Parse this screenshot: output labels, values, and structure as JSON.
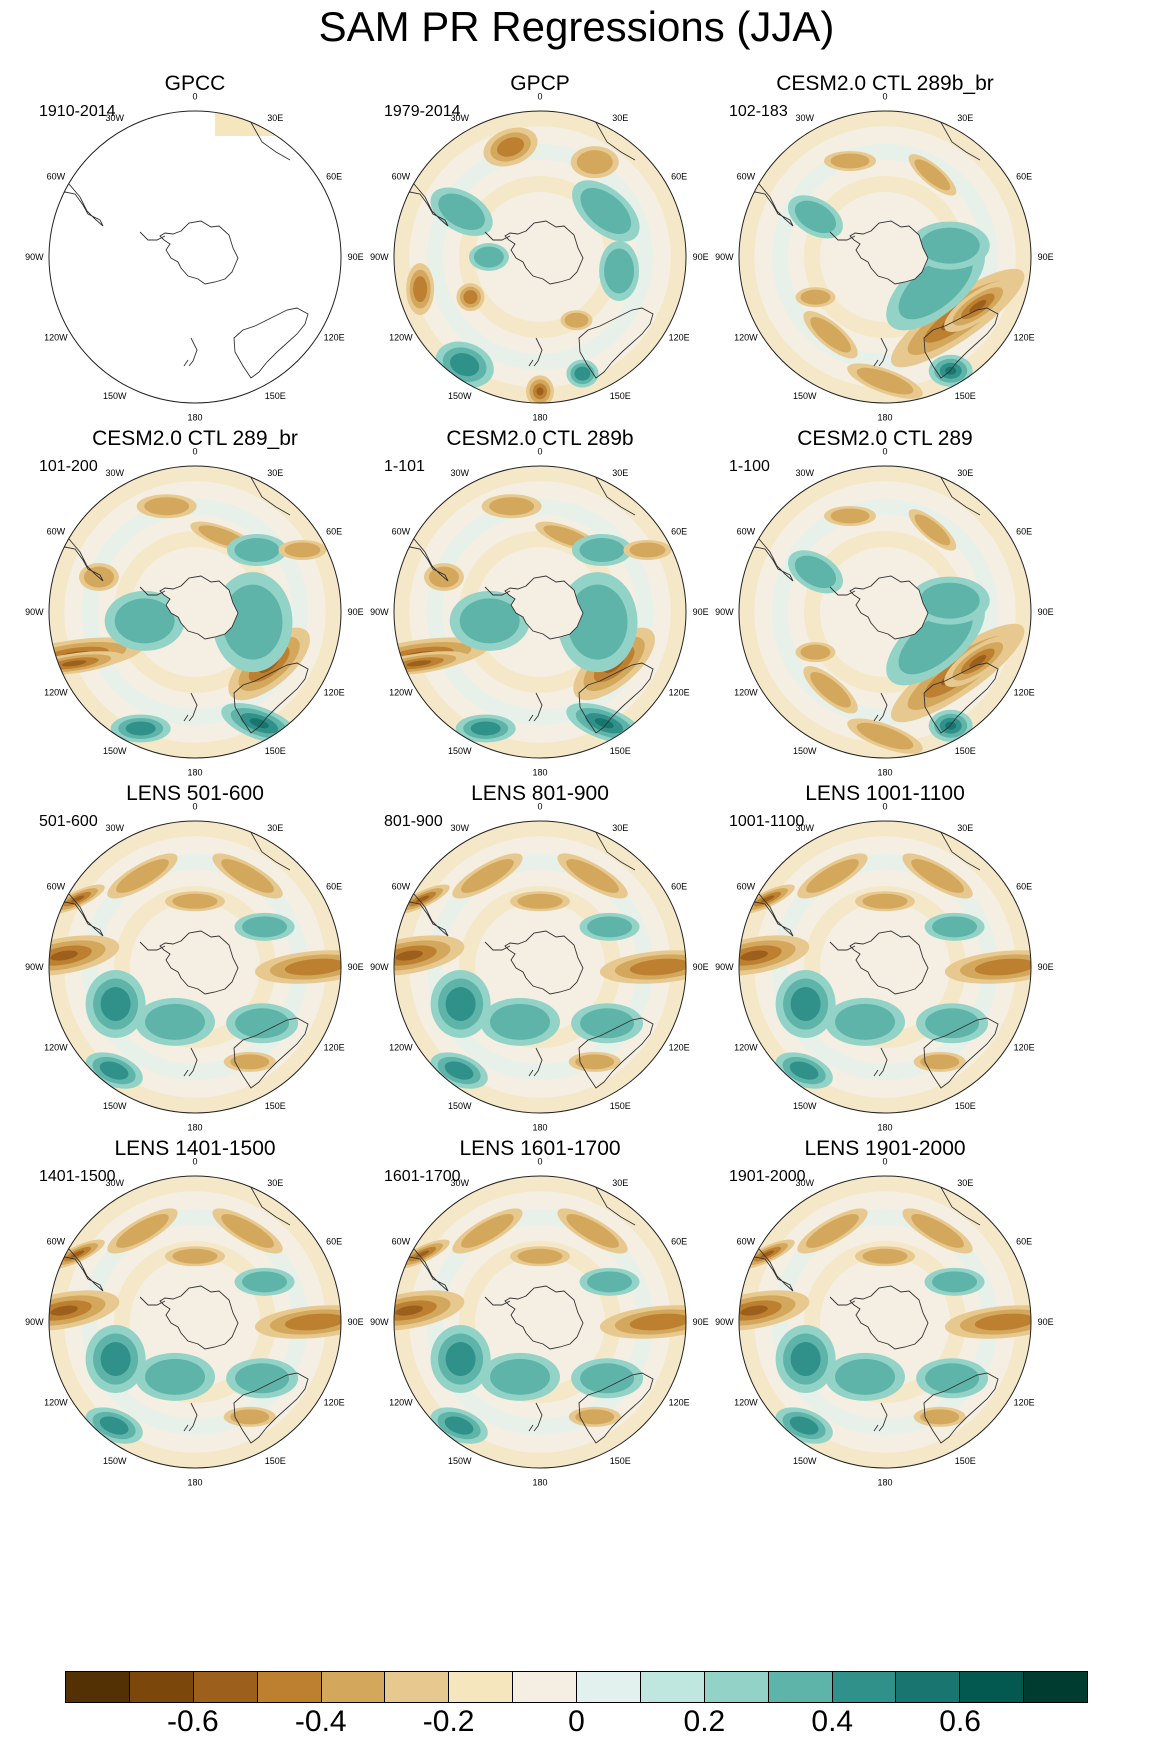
{
  "title": "SAM PR Regressions (JJA)",
  "panels": [
    {
      "title": "GPCC",
      "years": "1910-2014",
      "style": "obs",
      "pattern": "none"
    },
    {
      "title": "GPCP",
      "years": "1979-2014",
      "style": "full",
      "pattern": "gpcp"
    },
    {
      "title": "CESM2.0 CTL 289b_br",
      "years": "102-183",
      "style": "full",
      "pattern": "cesm_a"
    },
    {
      "title": "CESM2.0 CTL 289_br",
      "years": "101-200",
      "style": "full",
      "pattern": "cesm_b"
    },
    {
      "title": "CESM2.0 CTL 289b",
      "years": "1-101",
      "style": "full",
      "pattern": "cesm_b"
    },
    {
      "title": "CESM2.0 CTL 289",
      "years": "1-100",
      "style": "full",
      "pattern": "cesm_a"
    },
    {
      "title": "LENS 501-600",
      "years": "501-600",
      "style": "full",
      "pattern": "lens"
    },
    {
      "title": "LENS 801-900",
      "years": "801-900",
      "style": "full",
      "pattern": "lens"
    },
    {
      "title": "LENS 1001-1100",
      "years": "1001-1100",
      "style": "full",
      "pattern": "lens"
    },
    {
      "title": "LENS 1401-1500",
      "years": "1401-1500",
      "style": "full",
      "pattern": "lens"
    },
    {
      "title": "LENS 1601-1700",
      "years": "1601-1700",
      "style": "full",
      "pattern": "lens"
    },
    {
      "title": "LENS 1901-2000",
      "years": "1901-2000",
      "style": "full",
      "pattern": "lens"
    }
  ],
  "longitude_labels": [
    "0",
    "30E",
    "60E",
    "90E",
    "120E",
    "150E",
    "180",
    "150W",
    "120W",
    "90W",
    "60W",
    "30W"
  ],
  "colorbar": {
    "colors": [
      "#543005",
      "#7b470b",
      "#9c5f1c",
      "#bd8030",
      "#d4a85c",
      "#e7c98f",
      "#f5e6be",
      "#f4efe2",
      "#e2f1ee",
      "#c0e7df",
      "#93d3c7",
      "#5eb4a8",
      "#30918a",
      "#187570",
      "#03594f",
      "#003c30"
    ],
    "labels": [
      "-0.6",
      "-0.4",
      "-0.2",
      "0",
      "0.2",
      "0.4",
      "0.6"
    ],
    "label_values": [
      -0.6,
      -0.4,
      -0.2,
      0,
      0.2,
      0.4,
      0.6
    ],
    "min": -0.8,
    "max": 0.8
  }
}
